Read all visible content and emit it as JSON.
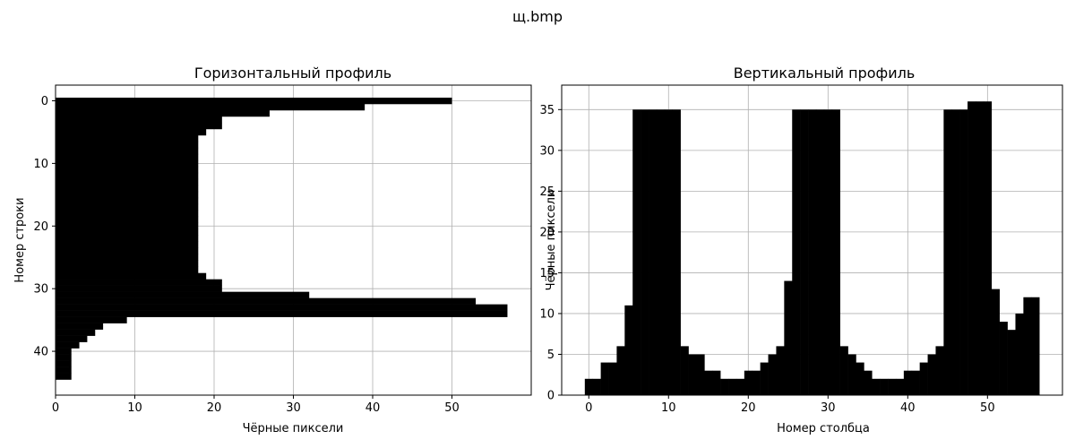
{
  "figure": {
    "suptitle": "щ.bmp"
  },
  "chart_data": [
    {
      "type": "bar",
      "orientation": "horizontal",
      "title": "Горизонтальный профиль",
      "xlabel": "Чёрные пиксели",
      "ylabel": "Номер строки",
      "xlim": [
        0,
        60
      ],
      "ylim": [
        47,
        -2.5
      ],
      "y_inverted": true,
      "grid": true,
      "xticks": [
        0,
        10,
        20,
        30,
        40,
        50
      ],
      "yticks": [
        0,
        10,
        20,
        30,
        40
      ],
      "bar_color": "#000000",
      "rows": [
        0,
        1,
        2,
        3,
        4,
        5,
        6,
        7,
        8,
        9,
        10,
        11,
        12,
        13,
        14,
        15,
        16,
        17,
        18,
        19,
        20,
        21,
        22,
        23,
        24,
        25,
        26,
        27,
        28,
        29,
        30,
        31,
        32,
        33,
        34,
        35,
        36,
        37,
        38,
        39,
        40,
        41,
        42,
        43,
        44
      ],
      "values": [
        50,
        39,
        27,
        21,
        21,
        19,
        18,
        18,
        18,
        18,
        18,
        18,
        18,
        18,
        18,
        18,
        18,
        18,
        18,
        18,
        18,
        18,
        18,
        18,
        18,
        18,
        18,
        18,
        19,
        21,
        21,
        32,
        53,
        57,
        57,
        9,
        6,
        5,
        4,
        3,
        2,
        2,
        2,
        2,
        2
      ]
    },
    {
      "type": "bar",
      "orientation": "vertical",
      "title": "Вертикальный профиль",
      "xlabel": "Номер столбца",
      "ylabel": "Чёрные пиксели",
      "xlim": [
        -3.4,
        59.4
      ],
      "ylim": [
        0,
        38
      ],
      "grid": true,
      "xticks": [
        0,
        10,
        20,
        30,
        40,
        50
      ],
      "yticks": [
        0,
        5,
        10,
        15,
        20,
        25,
        30,
        35
      ],
      "bar_color": "#000000",
      "columns": [
        0,
        1,
        2,
        3,
        4,
        5,
        6,
        7,
        8,
        9,
        10,
        11,
        12,
        13,
        14,
        15,
        16,
        17,
        18,
        19,
        20,
        21,
        22,
        23,
        24,
        25,
        26,
        27,
        28,
        29,
        30,
        31,
        32,
        33,
        34,
        35,
        36,
        37,
        38,
        39,
        40,
        41,
        42,
        43,
        44,
        45,
        46,
        47,
        48,
        49,
        50,
        51,
        52,
        53,
        54,
        55,
        56
      ],
      "values": [
        2,
        2,
        4,
        4,
        6,
        11,
        35,
        35,
        35,
        35,
        35,
        35,
        6,
        5,
        5,
        3,
        3,
        2,
        2,
        2,
        3,
        3,
        4,
        5,
        6,
        14,
        35,
        35,
        35,
        35,
        35,
        35,
        6,
        5,
        4,
        3,
        2,
        2,
        2,
        2,
        3,
        3,
        4,
        5,
        6,
        35,
        35,
        35,
        36,
        36,
        36,
        13,
        9,
        8,
        10,
        12,
        12
      ]
    }
  ]
}
